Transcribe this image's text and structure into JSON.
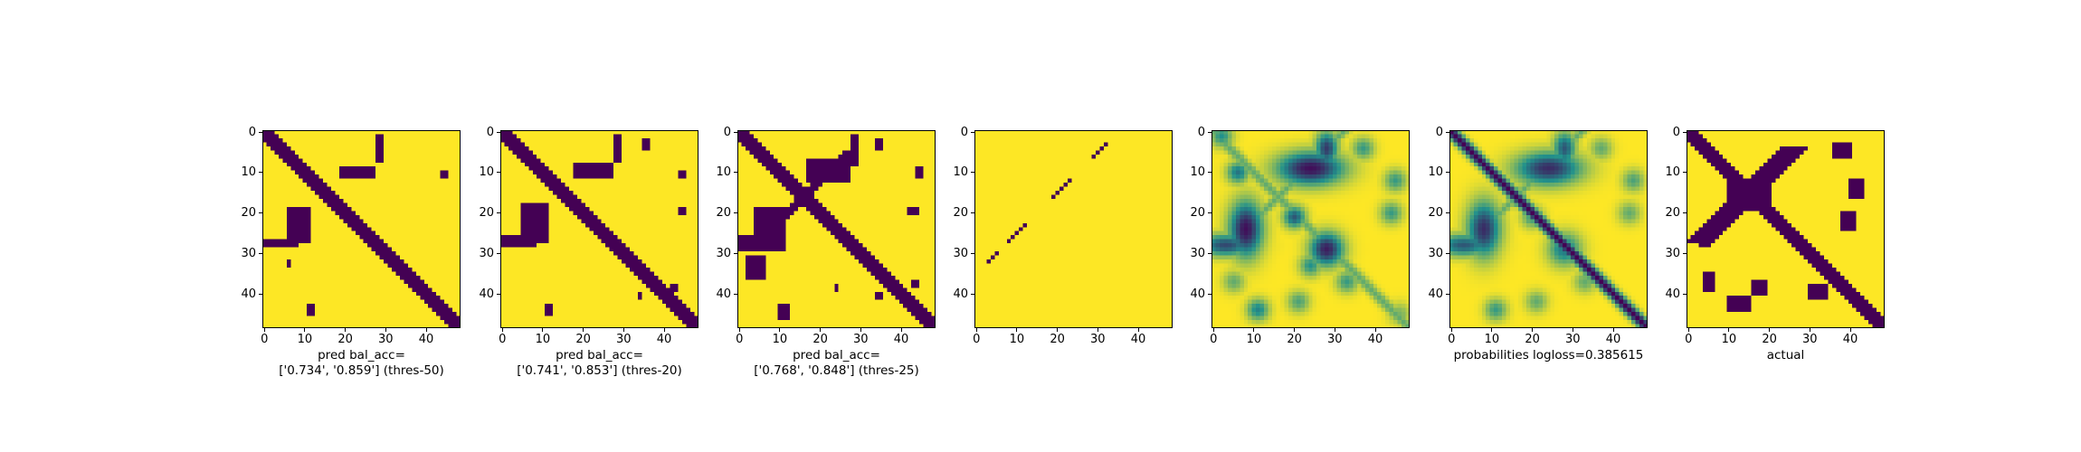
{
  "figure": {
    "background": "#ffffff"
  },
  "chart_data": {
    "type": "heatmap",
    "grid_size": 49,
    "axis_ticks": [
      "0",
      "10",
      "20",
      "30",
      "40"
    ],
    "colormap": {
      "low": "#440154",
      "mid": "#21918c",
      "high": "#fde725"
    },
    "panels": [
      {
        "label_lines": [
          "pred bal_acc=",
          "['0.734', '0.859'] (thres-50)"
        ],
        "kind": "binary",
        "diagonal": {
          "offset": 0,
          "width": 2
        },
        "blobs": [
          {
            "r0": 9,
            "r1": 11,
            "c0": 19,
            "c1": 27
          },
          {
            "r0": 1,
            "r1": 7,
            "c0": 28,
            "c1": 29
          },
          {
            "r0": 10,
            "r1": 11,
            "c0": 44,
            "c1": 45
          },
          {
            "r0": 19,
            "r1": 27,
            "c0": 6,
            "c1": 11
          },
          {
            "r0": 27,
            "r1": 28,
            "c0": 0,
            "c1": 8
          },
          {
            "r0": 43,
            "r1": 45,
            "c0": 11,
            "c1": 12
          },
          {
            "r0": 32,
            "r1": 33,
            "c0": 6,
            "c1": 6
          }
        ]
      },
      {
        "label_lines": [
          "pred bal_acc=",
          "['0.741', '0.853'] (thres-20)"
        ],
        "kind": "binary",
        "diagonal": {
          "offset": 0,
          "width": 2
        },
        "blobs": [
          {
            "r0": 8,
            "r1": 11,
            "c0": 18,
            "c1": 27
          },
          {
            "r0": 1,
            "r1": 7,
            "c0": 28,
            "c1": 29
          },
          {
            "r0": 2,
            "r1": 4,
            "c0": 35,
            "c1": 36
          },
          {
            "r0": 10,
            "r1": 11,
            "c0": 44,
            "c1": 45
          },
          {
            "r0": 18,
            "r1": 27,
            "c0": 5,
            "c1": 11
          },
          {
            "r0": 26,
            "r1": 28,
            "c0": 0,
            "c1": 8
          },
          {
            "r0": 19,
            "r1": 20,
            "c0": 44,
            "c1": 45
          },
          {
            "r0": 43,
            "r1": 45,
            "c0": 11,
            "c1": 12
          },
          {
            "r0": 40,
            "r1": 41,
            "c0": 34,
            "c1": 34
          },
          {
            "r0": 38,
            "r1": 39,
            "c0": 42,
            "c1": 43
          }
        ]
      },
      {
        "label_lines": [
          "pred bal_acc=",
          "['0.768', '0.848'] (thres-25)"
        ],
        "kind": "binary",
        "diagonal": {
          "offset": 0,
          "width": 2
        },
        "antidiagonal": {
          "sum": 32,
          "width": 1,
          "r0": 5,
          "r1": 28
        },
        "blobs": [
          {
            "r0": 7,
            "r1": 12,
            "c0": 17,
            "c1": 27
          },
          {
            "r0": 1,
            "r1": 8,
            "c0": 28,
            "c1": 29
          },
          {
            "r0": 2,
            "r1": 4,
            "c0": 34,
            "c1": 35
          },
          {
            "r0": 9,
            "r1": 11,
            "c0": 44,
            "c1": 45
          },
          {
            "r0": 19,
            "r1": 29,
            "c0": 4,
            "c1": 11
          },
          {
            "r0": 26,
            "r1": 29,
            "c0": 0,
            "c1": 8
          },
          {
            "r0": 31,
            "r1": 36,
            "c0": 2,
            "c1": 6
          },
          {
            "r0": 19,
            "r1": 20,
            "c0": 42,
            "c1": 44
          },
          {
            "r0": 43,
            "r1": 46,
            "c0": 10,
            "c1": 12
          },
          {
            "r0": 38,
            "r1": 39,
            "c0": 24,
            "c1": 24
          },
          {
            "r0": 40,
            "r1": 41,
            "c0": 34,
            "c1": 35
          },
          {
            "r0": 37,
            "r1": 38,
            "c0": 43,
            "c1": 44
          }
        ]
      },
      {
        "label_lines": [],
        "kind": "binary",
        "points": [
          [
            32,
            3
          ],
          [
            31,
            4
          ],
          [
            30,
            5
          ],
          [
            27,
            8
          ],
          [
            26,
            9
          ],
          [
            25,
            10
          ],
          [
            24,
            11
          ],
          [
            23,
            12
          ],
          [
            16,
            19
          ],
          [
            15,
            20
          ],
          [
            14,
            21
          ],
          [
            13,
            22
          ],
          [
            12,
            23
          ],
          [
            6,
            29
          ],
          [
            5,
            30
          ],
          [
            4,
            31
          ],
          [
            3,
            32
          ]
        ]
      },
      {
        "label_lines": [],
        "kind": "probabilities",
        "diagonal_strength": 0.35,
        "blobs": [
          {
            "r": 9,
            "c": 24,
            "sr": 3,
            "sc": 6,
            "v": 0.95
          },
          {
            "r": 4,
            "c": 28,
            "sr": 3,
            "sc": 2,
            "v": 0.8
          },
          {
            "r": 24,
            "c": 8,
            "sr": 5,
            "sc": 3,
            "v": 0.95
          },
          {
            "r": 28,
            "c": 3,
            "sr": 2,
            "sc": 5,
            "v": 0.75
          },
          {
            "r": 10,
            "c": 6,
            "sr": 2,
            "sc": 2,
            "v": 0.6
          },
          {
            "r": 21,
            "c": 20,
            "sr": 2,
            "sc": 2,
            "v": 0.7
          },
          {
            "r": 29,
            "c": 28,
            "sr": 3,
            "sc": 3,
            "v": 0.9
          },
          {
            "r": 33,
            "c": 24,
            "sr": 2,
            "sc": 2,
            "v": 0.5
          },
          {
            "r": 4,
            "c": 37,
            "sr": 2,
            "sc": 2,
            "v": 0.45
          },
          {
            "r": 12,
            "c": 45,
            "sr": 2,
            "sc": 2,
            "v": 0.45
          },
          {
            "r": 20,
            "c": 44,
            "sr": 2,
            "sc": 2,
            "v": 0.45
          },
          {
            "r": 37,
            "c": 33,
            "sr": 2,
            "sc": 2,
            "v": 0.45
          },
          {
            "r": 44,
            "c": 11,
            "sr": 2,
            "sc": 2,
            "v": 0.55
          },
          {
            "r": 42,
            "c": 21,
            "sr": 2,
            "sc": 2,
            "v": 0.4
          },
          {
            "r": 37,
            "c": 5,
            "sr": 2,
            "sc": 2,
            "v": 0.35
          },
          {
            "r": 1,
            "c": 2,
            "sr": 2,
            "sc": 2,
            "v": 0.5
          },
          {
            "r": 45,
            "c": 46,
            "sr": 2,
            "sc": 2,
            "v": 0.3
          }
        ],
        "antidiagonal": {
          "sum": 32,
          "strength": 0.35
        }
      },
      {
        "label_lines": [
          "probabilities logloss=0.385615"
        ],
        "kind": "probabilities",
        "diagonal_strength": 1.0,
        "blobs": [
          {
            "r": 9,
            "c": 24,
            "sr": 3,
            "sc": 6,
            "v": 0.85
          },
          {
            "r": 4,
            "c": 28,
            "sr": 3,
            "sc": 2,
            "v": 0.7
          },
          {
            "r": 24,
            "c": 8,
            "sr": 5,
            "sc": 3,
            "v": 0.85
          },
          {
            "r": 28,
            "c": 3,
            "sr": 2,
            "sc": 5,
            "v": 0.7
          },
          {
            "r": 21,
            "c": 20,
            "sr": 2,
            "sc": 2,
            "v": 0.45
          },
          {
            "r": 29,
            "c": 28,
            "sr": 3,
            "sc": 3,
            "v": 0.6
          },
          {
            "r": 4,
            "c": 37,
            "sr": 2,
            "sc": 2,
            "v": 0.35
          },
          {
            "r": 12,
            "c": 45,
            "sr": 2,
            "sc": 2,
            "v": 0.4
          },
          {
            "r": 20,
            "c": 44,
            "sr": 2,
            "sc": 2,
            "v": 0.35
          },
          {
            "r": 37,
            "c": 33,
            "sr": 2,
            "sc": 2,
            "v": 0.35
          },
          {
            "r": 44,
            "c": 11,
            "sr": 2,
            "sc": 2,
            "v": 0.45
          },
          {
            "r": 42,
            "c": 21,
            "sr": 2,
            "sc": 2,
            "v": 0.35
          }
        ],
        "antidiagonal": {
          "sum": 32,
          "strength": 0.35
        }
      },
      {
        "label_lines": [
          "actual"
        ],
        "kind": "binary",
        "diagonal": {
          "offset": 0,
          "width": 2
        },
        "antidiagonal": {
          "sum": 30,
          "width": 3,
          "r0": 4,
          "r1": 27
        },
        "blobs": [
          {
            "r0": 12,
            "r1": 19,
            "c0": 10,
            "c1": 20
          },
          {
            "r0": 3,
            "r1": 6,
            "c0": 36,
            "c1": 40
          },
          {
            "r0": 12,
            "r1": 16,
            "c0": 40,
            "c1": 43
          },
          {
            "r0": 20,
            "r1": 24,
            "c0": 38,
            "c1": 41
          },
          {
            "r0": 26,
            "r1": 28,
            "c0": 3,
            "c1": 5
          },
          {
            "r0": 35,
            "r1": 39,
            "c0": 4,
            "c1": 6
          },
          {
            "r0": 37,
            "r1": 40,
            "c0": 16,
            "c1": 19
          },
          {
            "r0": 41,
            "r1": 44,
            "c0": 10,
            "c1": 15
          },
          {
            "r0": 38,
            "r1": 41,
            "c0": 30,
            "c1": 34
          }
        ]
      }
    ]
  }
}
